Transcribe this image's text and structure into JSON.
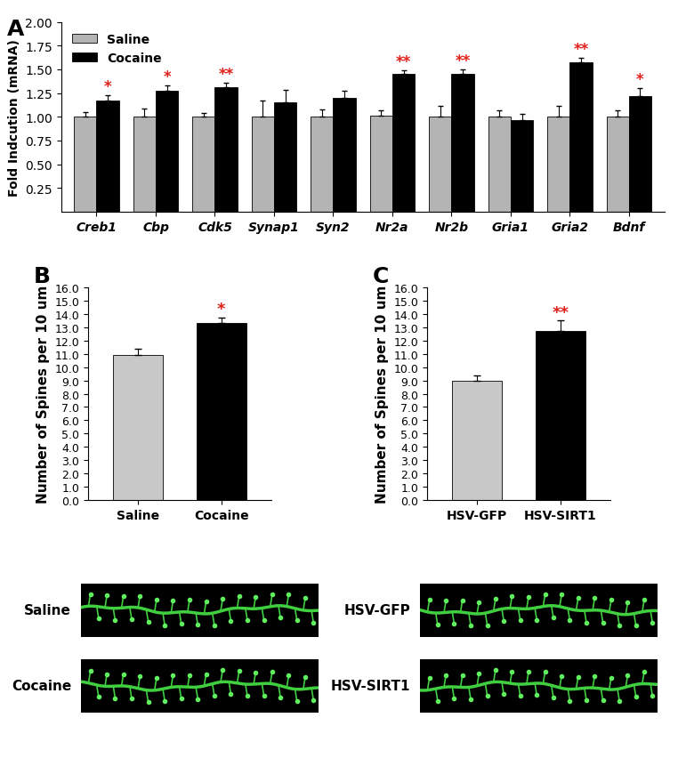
{
  "chart_data": [
    {
      "type": "bar",
      "title": "A",
      "y_label": "Fold Indcution (mRNA)",
      "categories": [
        "Creb1",
        "Cbp",
        "Cdk5",
        "Synap1",
        "Syn2",
        "Nr2a",
        "Nr2b",
        "Gria1",
        "Gria2",
        "Bdnf"
      ],
      "series": [
        {
          "name": "Saline",
          "color": "#b4b4b4",
          "values": [
            1.0,
            1.0,
            1.0,
            1.0,
            1.0,
            1.01,
            1.0,
            1.0,
            1.0,
            1.0
          ],
          "errors": [
            0.05,
            0.09,
            0.04,
            0.17,
            0.08,
            0.06,
            0.11,
            0.07,
            0.11,
            0.07
          ]
        },
        {
          "name": "Cocaine",
          "color": "#000000",
          "values": [
            1.17,
            1.27,
            1.31,
            1.15,
            1.2,
            1.45,
            1.45,
            0.96,
            1.57,
            1.22
          ],
          "errors": [
            0.06,
            0.06,
            0.05,
            0.13,
            0.07,
            0.04,
            0.05,
            0.07,
            0.05,
            0.08
          ]
        }
      ],
      "annotations": [
        {
          "category": "Creb1",
          "series": "Cocaine",
          "text": "*"
        },
        {
          "category": "Cbp",
          "series": "Cocaine",
          "text": "*"
        },
        {
          "category": "Cdk5",
          "series": "Cocaine",
          "text": "**"
        },
        {
          "category": "Nr2a",
          "series": "Cocaine",
          "text": "**"
        },
        {
          "category": "Nr2b",
          "series": "Cocaine",
          "text": "**"
        },
        {
          "category": "Gria2",
          "series": "Cocaine",
          "text": "**"
        },
        {
          "category": "Bdnf",
          "series": "Cocaine",
          "text": "*"
        }
      ],
      "ylim": [
        0,
        2.0
      ],
      "yticks": [
        0.25,
        {
          "value": 0.5,
          "label": "0.50"
        },
        0.75,
        {
          "value": 1.0,
          "label": "1.00"
        },
        1.25,
        {
          "value": 1.5,
          "label": "1.50"
        },
        1.75,
        {
          "value": 2.0,
          "label": "2.00"
        }
      ],
      "legend": "upper left"
    },
    {
      "type": "bar",
      "title": "B",
      "y_label": "Number of Spines per 10 um",
      "categories": [
        "Saline",
        "Cocaine"
      ],
      "colors": [
        "#c8c8c8",
        "#000000"
      ],
      "values": [
        10.9,
        13.3
      ],
      "errors": [
        0.5,
        0.45
      ],
      "annotations": [
        {
          "category": "Cocaine",
          "text": "*"
        }
      ],
      "image_labels": [
        "Saline",
        "Cocaine"
      ],
      "ylim": [
        0,
        16.0
      ],
      "yticks": [
        {
          "value": 0,
          "label": "0.0"
        },
        {
          "value": 1,
          "label": "1.0"
        },
        {
          "value": 2,
          "label": "2.0"
        },
        {
          "value": 3,
          "label": "3.0"
        },
        {
          "value": 4,
          "label": "4.0"
        },
        {
          "value": 5,
          "label": "5.0"
        },
        {
          "value": 6,
          "label": "6.0"
        },
        {
          "value": 7,
          "label": "7.0"
        },
        {
          "value": 8,
          "label": "8.0"
        },
        {
          "value": 9,
          "label": "9.0"
        },
        {
          "value": 10,
          "label": "10.0"
        },
        {
          "value": 11,
          "label": "11.0"
        },
        {
          "value": 12,
          "label": "12.0"
        },
        {
          "value": 13,
          "label": "13.0"
        },
        {
          "value": 14,
          "label": "14.0"
        },
        {
          "value": 15,
          "label": "15.0"
        },
        {
          "value": 16,
          "label": "16.0"
        }
      ]
    },
    {
      "type": "bar",
      "title": "C",
      "y_label": "Number of Spines per 10 um",
      "categories": [
        "HSV-GFP",
        "HSV-SIRT1"
      ],
      "colors": [
        "#c8c8c8",
        "#000000"
      ],
      "values": [
        8.95,
        12.7
      ],
      "errors": [
        0.45,
        0.8
      ],
      "annotations": [
        {
          "category": "HSV-SIRT1",
          "text": "**"
        }
      ],
      "image_labels": [
        "HSV-GFP",
        "HSV-SIRT1"
      ],
      "ylim": [
        0,
        16.0
      ],
      "yticks": [
        {
          "value": 0,
          "label": "0.0"
        },
        {
          "value": 1,
          "label": "1.0"
        },
        {
          "value": 2,
          "label": "2.0"
        },
        {
          "value": 3,
          "label": "3.0"
        },
        {
          "value": 4,
          "label": "4.0"
        },
        {
          "value": 5,
          "label": "5.0"
        },
        {
          "value": 6,
          "label": "6.0"
        },
        {
          "value": 7,
          "label": "7.0"
        },
        {
          "value": 8,
          "label": "8.0"
        },
        {
          "value": 9,
          "label": "9.0"
        },
        {
          "value": 10,
          "label": "10.0"
        },
        {
          "value": 11,
          "label": "11.0"
        },
        {
          "value": 12,
          "label": "12.0"
        },
        {
          "value": 13,
          "label": "13.0"
        },
        {
          "value": 14,
          "label": "14.0"
        },
        {
          "value": 15,
          "label": "15.0"
        },
        {
          "value": 16,
          "label": "16.0"
        }
      ]
    }
  ]
}
